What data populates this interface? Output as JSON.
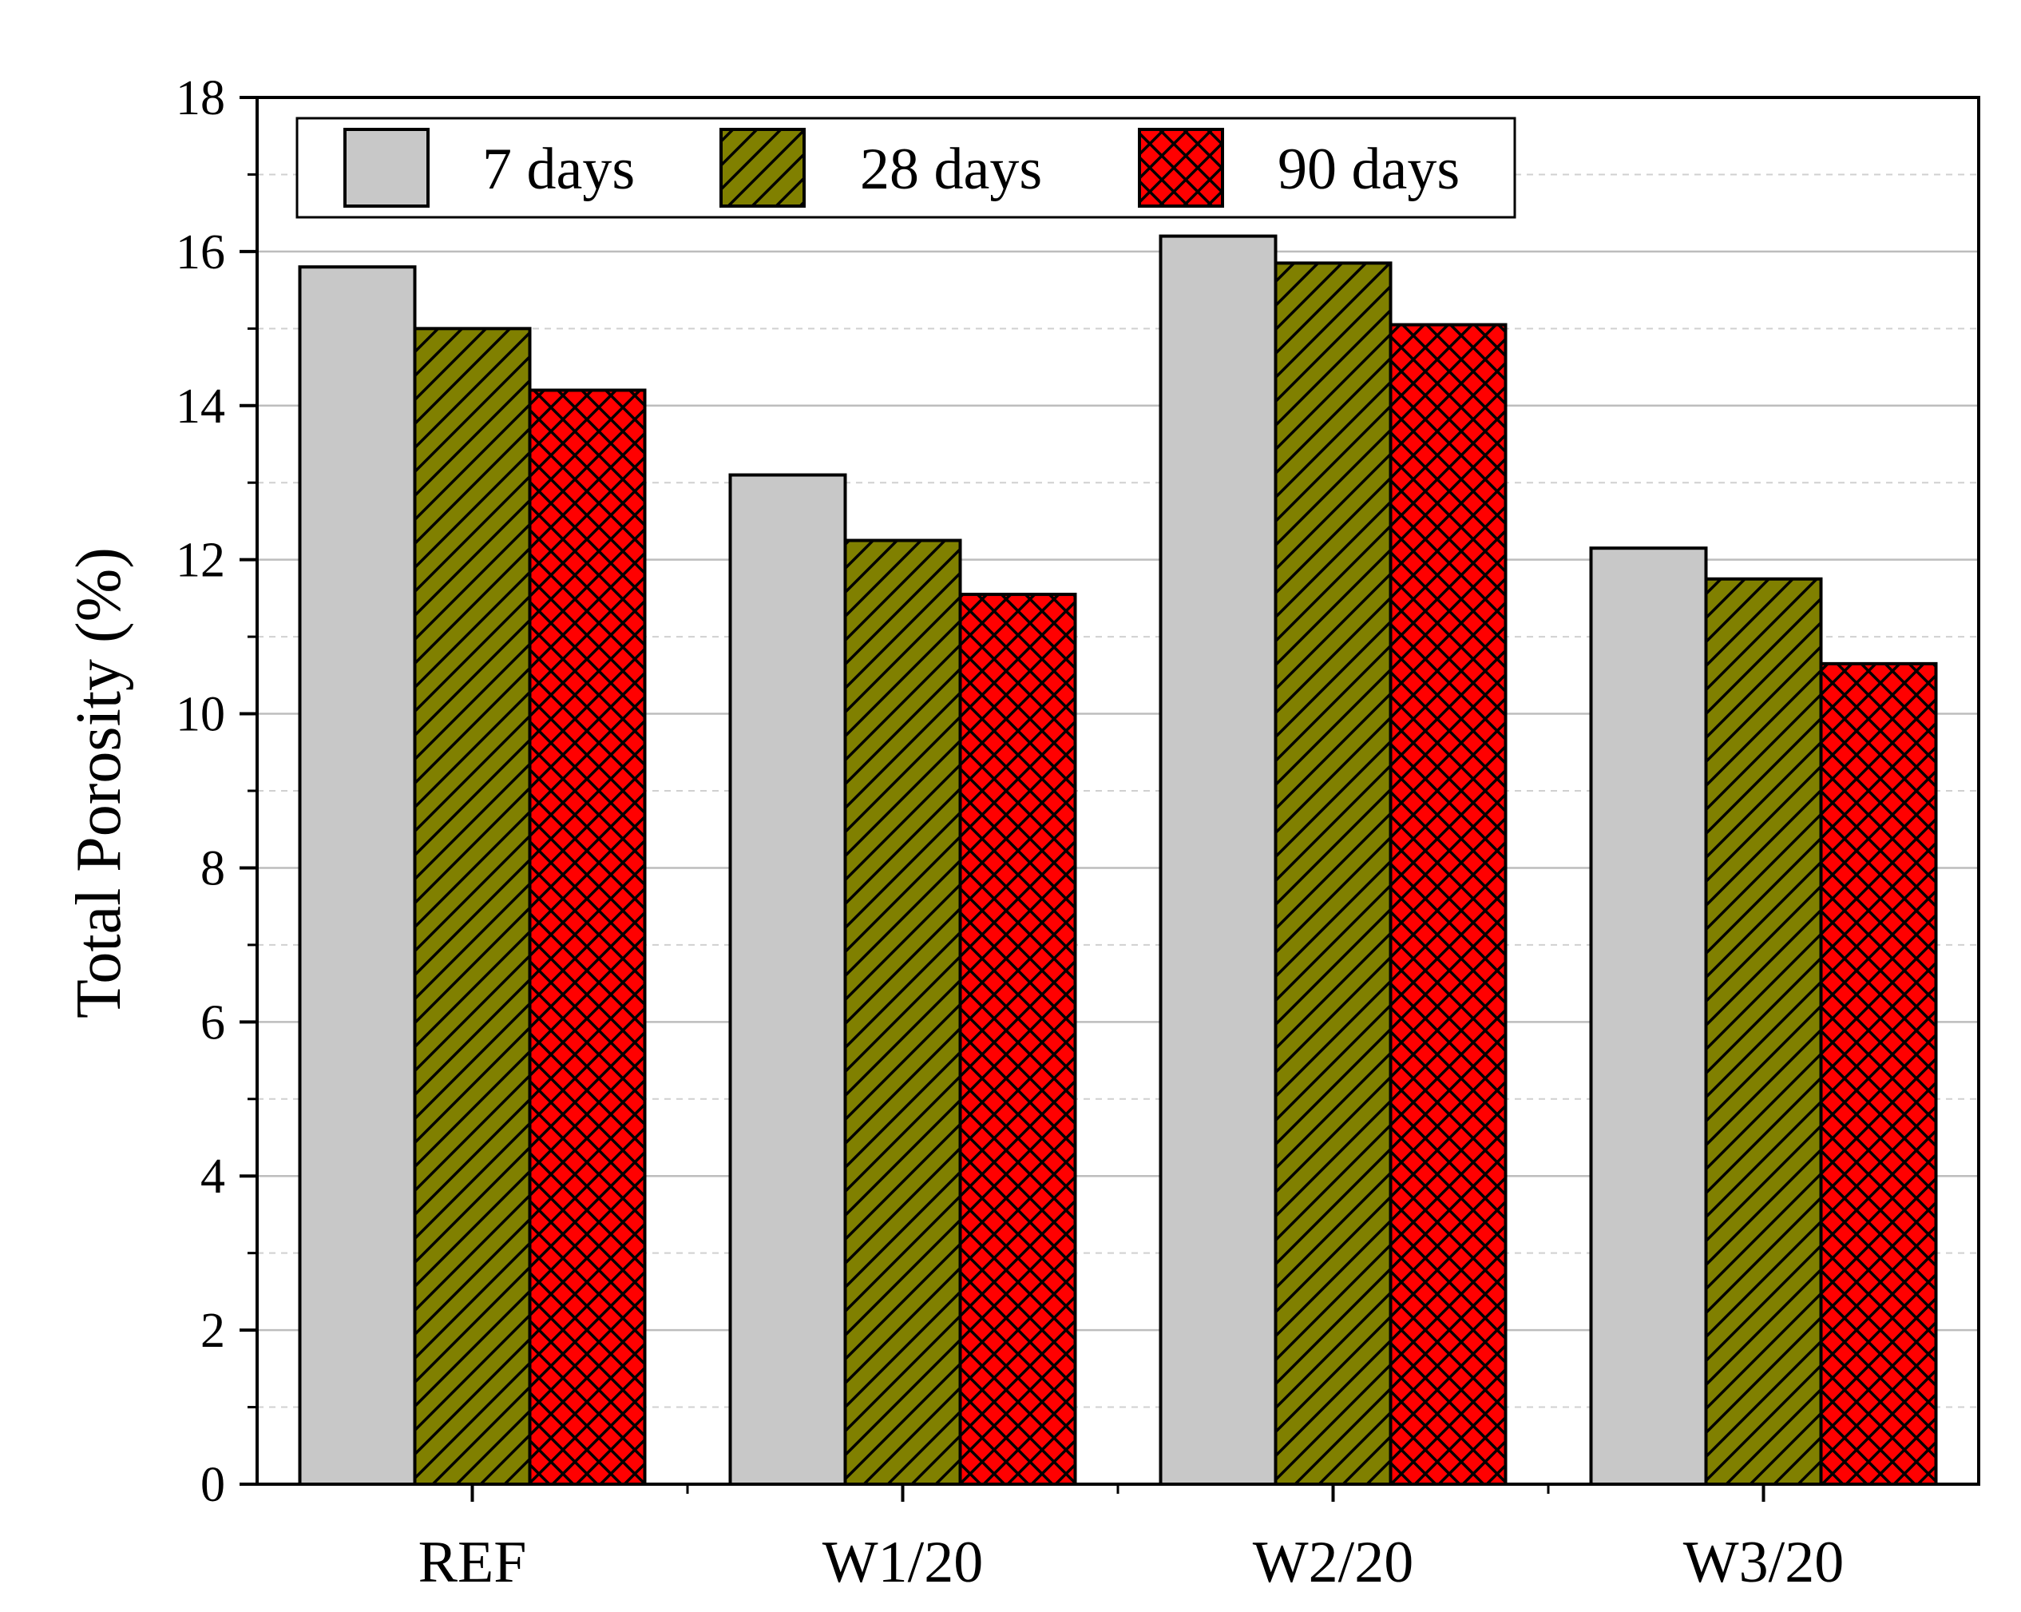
{
  "chart_data": {
    "type": "bar",
    "title": "",
    "xlabel": "",
    "ylabel": "Total Porosity (%)",
    "ylim": [
      0,
      18
    ],
    "yticks": [
      0,
      2,
      4,
      6,
      8,
      10,
      12,
      14,
      16,
      18
    ],
    "grid": true,
    "legend_position": "top-left",
    "categories": [
      "REF",
      "W1/20",
      "W2/20",
      "W3/20"
    ],
    "series": [
      {
        "name": "7 days",
        "values": [
          15.8,
          13.1,
          16.2,
          12.15
        ],
        "color": "#c8c8c8",
        "pattern": "solid"
      },
      {
        "name": "28 days",
        "values": [
          15.0,
          12.25,
          15.85,
          11.75
        ],
        "color": "#808000",
        "pattern": "diagonal"
      },
      {
        "name": "90 days",
        "values": [
          14.2,
          11.55,
          15.05,
          10.65
        ],
        "color": "#ff0000",
        "pattern": "crosshatch"
      }
    ]
  }
}
